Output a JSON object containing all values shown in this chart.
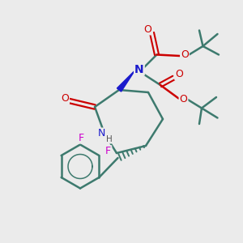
{
  "bg_color": "#ebebeb",
  "bond_color": "#3d7a6e",
  "N_color": "#1a1acc",
  "O_color": "#cc0000",
  "F_color": "#cc00cc",
  "lw": 1.8,
  "figsize": [
    3.0,
    3.0
  ],
  "dpi": 100,
  "xlim": [
    0,
    10
  ],
  "ylim": [
    0,
    10
  ]
}
